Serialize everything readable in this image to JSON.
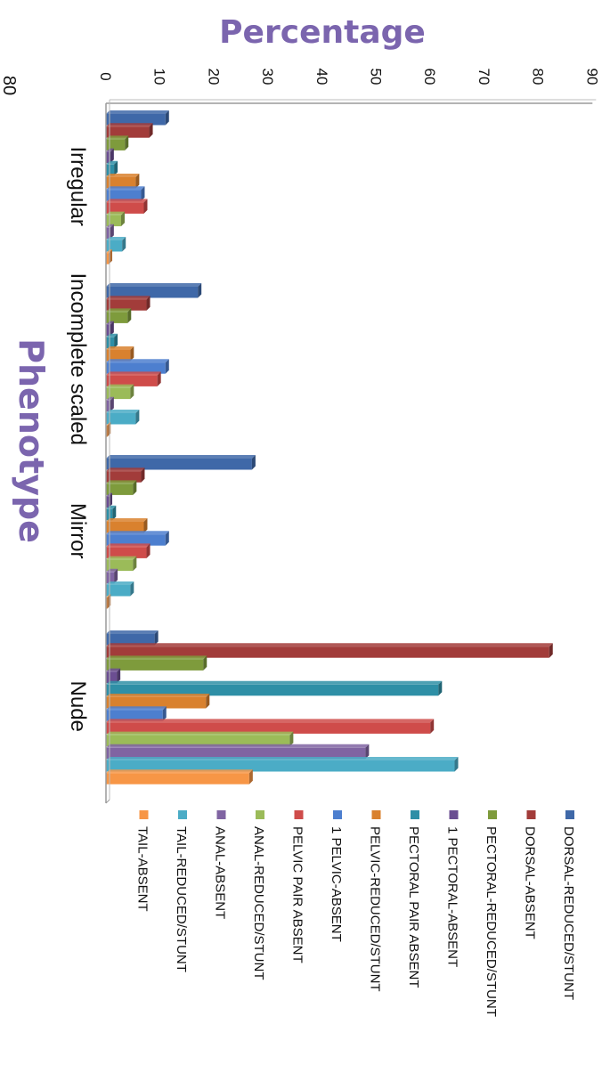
{
  "chart_data": {
    "type": "bar",
    "orientation": "horizontal",
    "title": "",
    "xlabel": "Phenotype",
    "ylabel": "Percentage",
    "ylim": [
      0,
      90
    ],
    "yticks": [
      0,
      10,
      20,
      30,
      40,
      50,
      60,
      70,
      80,
      90
    ],
    "grid": false,
    "legend_position": "right",
    "extra_axis_label": "80",
    "categories": [
      "Irregular",
      "Incomplete scaled",
      "Mirror",
      "Nude"
    ],
    "series": [
      {
        "name": "DORSAL-REDUCED/STUNT",
        "color": "#3F68A8",
        "values": [
          11,
          17,
          27,
          9
        ]
      },
      {
        "name": "DORSAL-ABSENT",
        "color": "#A23C3A",
        "values": [
          8,
          7.5,
          6.5,
          82
        ]
      },
      {
        "name": "PECTORAL-REDUCED/STUNT",
        "color": "#7E9B3C",
        "values": [
          3.5,
          4,
          5,
          18
        ]
      },
      {
        "name": "1 PECTORAL-ABSENT",
        "color": "#6B4E92",
        "values": [
          0.8,
          0.8,
          0.5,
          2
        ]
      },
      {
        "name": "PECTORAL PAIR ABSENT",
        "color": "#2E8FA6",
        "values": [
          1.5,
          1.5,
          1.2,
          61.5
        ]
      },
      {
        "name": "PELVIC-REDUCED/STUNT",
        "color": "#D9812E",
        "values": [
          5.5,
          4.5,
          7,
          18.5
        ]
      },
      {
        "name": "1 PELVIC-ABSENT",
        "color": "#4D7FCF",
        "values": [
          6.5,
          11,
          11,
          10.5
        ]
      },
      {
        "name": "PELVIC PAIR ABSENT",
        "color": "#CF4C4A",
        "values": [
          7,
          9.5,
          7.5,
          60
        ]
      },
      {
        "name": "ANAL-REDUCED/STUNT",
        "color": "#9BBB59",
        "values": [
          2.8,
          4.5,
          5,
          34
        ]
      },
      {
        "name": "ANAL-ABSENT",
        "color": "#8064A2",
        "values": [
          0.8,
          0.8,
          1.5,
          48
        ]
      },
      {
        "name": "TAIL-REDUCED/STUNT",
        "color": "#4BACC6",
        "values": [
          3,
          5.5,
          4.5,
          64.5
        ]
      },
      {
        "name": "TAIL-ABSENT",
        "color": "#F79646",
        "values": [
          0.5,
          0.2,
          0.2,
          26.5
        ]
      }
    ]
  }
}
